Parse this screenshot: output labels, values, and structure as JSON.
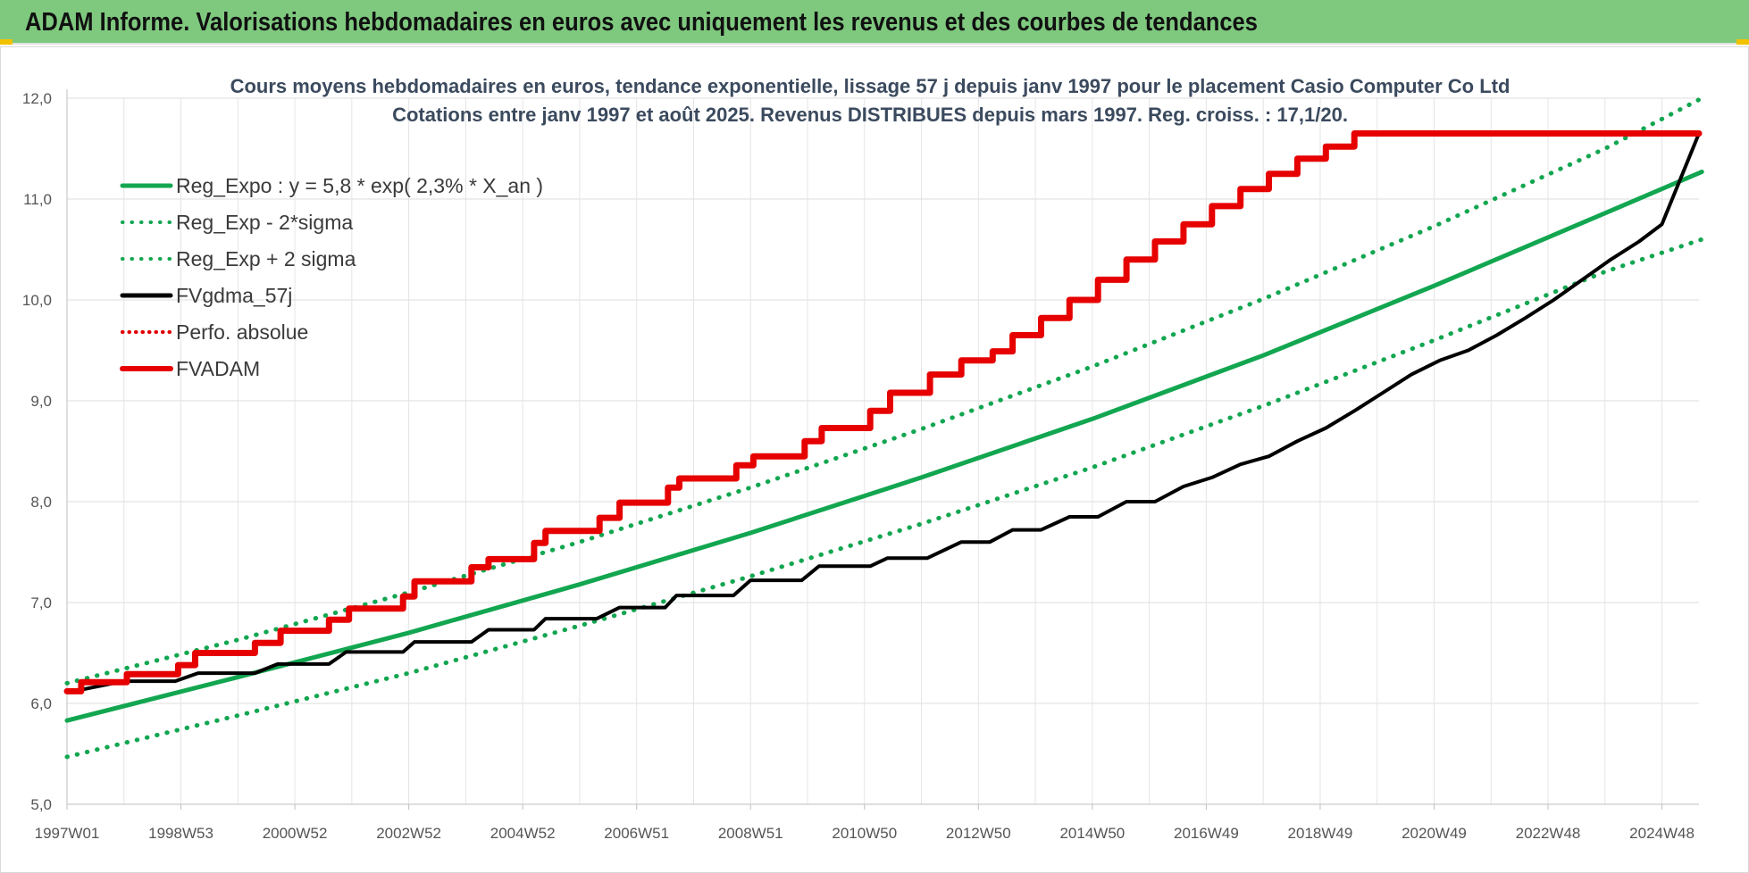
{
  "header": {
    "title": "ADAM Informe. Valorisations hebdomadaires en euros avec uniquement les revenus et des courbes de tendances"
  },
  "chart_data": {
    "type": "line",
    "title_lines": [
      "Cours moyens  hebdomadaires en euros, tendance exponentielle, lissage 57 j depuis janv 1997 pour le placement Casio Computer Co Ltd",
      "Cotations entre janv 1997 et août 2025.  Revenus DISTRIBUES depuis mars 1997. Reg. croiss. : 17,1/20."
    ],
    "xlabel": "",
    "ylabel": "",
    "ylim": [
      5.0,
      12.0
    ],
    "yticks": [
      "5,0",
      "6,0",
      "7,0",
      "8,0",
      "9,0",
      "10,0",
      "11,0",
      "12,0"
    ],
    "xlim": [
      1997.0,
      2025.65
    ],
    "xtick_labels": [
      "1997W01",
      "1998W53",
      "2000W52",
      "2002W52",
      "2004W52",
      "2006W51",
      "2008W51",
      "2010W50",
      "2012W50",
      "2014W50",
      "2016W49",
      "2018W49",
      "2020W49",
      "2022W48",
      "2024W48"
    ],
    "xtick_years": [
      1997.0,
      1999.0,
      2001.0,
      2003.0,
      2005.0,
      2007.0,
      2009.0,
      2011.0,
      2013.0,
      2015.0,
      2017.0,
      2019.0,
      2021.0,
      2023.0,
      2025.0
    ],
    "grid": true,
    "legend_position": "top-left",
    "series": [
      {
        "name": "Reg_Expo : y = 5,8 * exp( 2,3% *  X_an )",
        "color": "#12a650",
        "style": "solid",
        "width": 5,
        "x": [
          1997.0,
          2000.0,
          2003.0,
          2006.0,
          2009.0,
          2012.0,
          2015.0,
          2018.0,
          2021.0,
          2024.0,
          2025.7
        ],
        "y": [
          5.83,
          6.26,
          6.7,
          7.18,
          7.69,
          8.24,
          8.82,
          9.45,
          10.14,
          10.86,
          11.27
        ]
      },
      {
        "name": "Reg_Exp - 2*sigma",
        "color": "#12a650",
        "style": "dotted",
        "width": 5,
        "x": [
          1997.0,
          2000.0,
          2003.0,
          2006.0,
          2009.0,
          2012.0,
          2015.0,
          2018.0,
          2021.0,
          2024.0,
          2025.7
        ],
        "y": [
          5.47,
          5.88,
          6.3,
          6.77,
          7.26,
          7.78,
          8.34,
          8.95,
          9.6,
          10.28,
          10.6
        ]
      },
      {
        "name": "Reg_Exp + 2 sigma",
        "color": "#12a650",
        "style": "dotted",
        "width": 5,
        "x": [
          1997.0,
          2000.0,
          2003.0,
          2006.0,
          2009.0,
          2012.0,
          2015.0,
          2018.0,
          2021.0,
          2024.0,
          2025.7
        ],
        "y": [
          6.2,
          6.63,
          7.1,
          7.6,
          8.14,
          8.72,
          9.34,
          10.01,
          10.73,
          11.5,
          12.0
        ]
      },
      {
        "name": "FVgdma_57j",
        "color": "#000000",
        "style": "solid",
        "width": 4,
        "x": [
          1997.0,
          1997.2,
          1998.0,
          1998.9,
          1999.3,
          2000.3,
          2000.7,
          2001.6,
          2001.9,
          2002.9,
          2003.1,
          2004.1,
          2004.4,
          2005.2,
          2005.4,
          2006.3,
          2006.7,
          2007.5,
          2007.7,
          2008.7,
          2009.0,
          2009.9,
          2010.2,
          2011.1,
          2011.4,
          2012.1,
          2012.7,
          2013.2,
          2013.6,
          2014.1,
          2014.6,
          2015.1,
          2015.6,
          2016.1,
          2016.6,
          2017.1,
          2017.6,
          2018.1,
          2018.6,
          2019.1,
          2019.6,
          2020.1,
          2020.6,
          2021.1,
          2021.6,
          2022.1,
          2022.6,
          2023.1,
          2023.6,
          2024.1,
          2024.6,
          2025.0,
          2025.65
        ],
        "y": [
          6.13,
          6.13,
          6.22,
          6.22,
          6.3,
          6.3,
          6.39,
          6.39,
          6.51,
          6.51,
          6.61,
          6.61,
          6.73,
          6.73,
          6.84,
          6.84,
          6.95,
          6.95,
          7.07,
          7.07,
          7.22,
          7.22,
          7.36,
          7.36,
          7.44,
          7.44,
          7.6,
          7.6,
          7.72,
          7.72,
          7.85,
          7.85,
          8.0,
          8.0,
          8.15,
          8.24,
          8.37,
          8.45,
          8.6,
          8.73,
          8.9,
          9.08,
          9.26,
          9.4,
          9.5,
          9.65,
          9.82,
          10.0,
          10.2,
          10.4,
          10.58,
          10.75,
          11.65
        ]
      },
      {
        "name": "Perfo. absolue",
        "color": "#e00000",
        "style": "dotted",
        "width": 3,
        "x": [],
        "y": []
      },
      {
        "name": "FVADAM",
        "color": "#e60000",
        "style": "step",
        "width": 7,
        "x": [
          1997.0,
          1997.25,
          1998.05,
          1998.95,
          1999.25,
          2000.3,
          2000.75,
          2001.6,
          2001.95,
          2002.9,
          2003.1,
          2004.1,
          2004.4,
          2005.2,
          2005.4,
          2006.35,
          2006.7,
          2007.55,
          2007.75,
          2008.75,
          2009.05,
          2009.95,
          2010.25,
          2011.1,
          2011.45,
          2012.15,
          2012.7,
          2013.25,
          2013.6,
          2014.1,
          2014.6,
          2015.1,
          2015.6,
          2016.1,
          2016.6,
          2017.1,
          2017.6,
          2018.1,
          2018.6,
          2019.1,
          2019.6,
          2020.1,
          2020.6,
          2021.1,
          2021.6,
          2022.1,
          2022.6,
          2023.1,
          2023.6,
          2024.1,
          2024.6,
          2025.0,
          2025.65
        ],
        "y": [
          6.12,
          6.21,
          6.29,
          6.38,
          6.5,
          6.6,
          6.72,
          6.83,
          6.94,
          7.06,
          7.21,
          7.35,
          7.43,
          7.59,
          7.71,
          7.84,
          7.99,
          8.14,
          8.23,
          8.36,
          8.45,
          8.6,
          8.73,
          8.9,
          9.08,
          9.26,
          9.4,
          9.49,
          9.65,
          9.82,
          10.0,
          10.2,
          10.4,
          10.58,
          10.75,
          10.93,
          11.1,
          11.25,
          11.4,
          11.52,
          11.65,
          11.65,
          11.65,
          11.65,
          11.65,
          11.65,
          11.65,
          11.65,
          11.65,
          11.65,
          11.65,
          11.65,
          11.65
        ]
      }
    ]
  }
}
